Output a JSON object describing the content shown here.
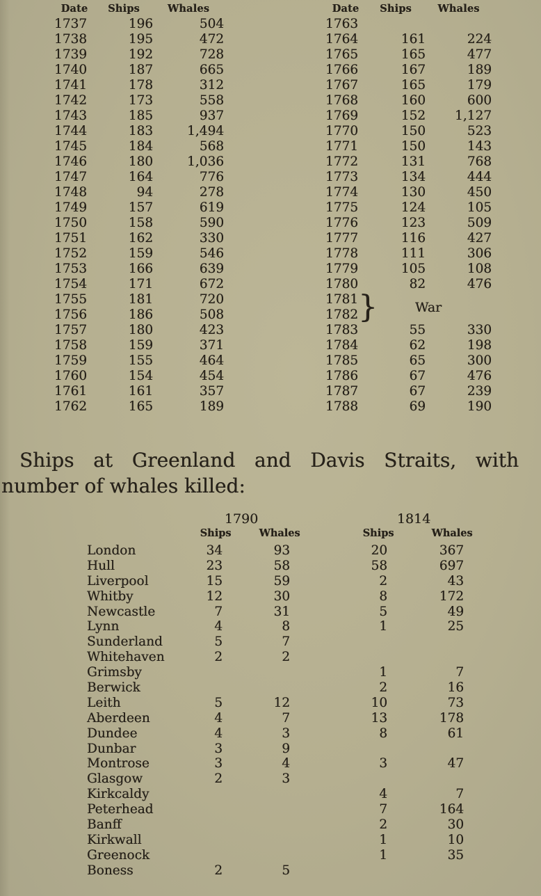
{
  "colors": {
    "page_bg": "#b5af90",
    "ink": "#27221a"
  },
  "annual_table": {
    "headers": {
      "date": "Date",
      "ships": "Ships",
      "whales": "Whales"
    },
    "left_rows": [
      [
        "1737",
        "196",
        "504"
      ],
      [
        "1738",
        "195",
        "472"
      ],
      [
        "1739",
        "192",
        "728"
      ],
      [
        "1740",
        "187",
        "665"
      ],
      [
        "1741",
        "178",
        "312"
      ],
      [
        "1742",
        "173",
        "558"
      ],
      [
        "1743",
        "185",
        "937"
      ],
      [
        "1744",
        "183",
        "1,494"
      ],
      [
        "1745",
        "184",
        "568"
      ],
      [
        "1746",
        "180",
        "1,036"
      ],
      [
        "1747",
        "164",
        "776"
      ],
      [
        "1748",
        "94",
        "278"
      ],
      [
        "1749",
        "157",
        "619"
      ],
      [
        "1750",
        "158",
        "590"
      ],
      [
        "1751",
        "162",
        "330"
      ],
      [
        "1752",
        "159",
        "546"
      ],
      [
        "1753",
        "166",
        "639"
      ],
      [
        "1754",
        "171",
        "672"
      ],
      [
        "1755",
        "181",
        "720"
      ],
      [
        "1756",
        "186",
        "508"
      ],
      [
        "1757",
        "180",
        "423"
      ],
      [
        "1758",
        "159",
        "371"
      ],
      [
        "1759",
        "155",
        "464"
      ],
      [
        "1760",
        "154",
        "454"
      ],
      [
        "1761",
        "161",
        "357"
      ],
      [
        "1762",
        "165",
        "189"
      ]
    ],
    "right_rows_before_war": [
      [
        "1763",
        "",
        ""
      ],
      [
        "1764",
        "161",
        "224"
      ],
      [
        "1765",
        "165",
        "477"
      ],
      [
        "1766",
        "167",
        "189"
      ],
      [
        "1767",
        "165",
        "179"
      ],
      [
        "1768",
        "160",
        "600"
      ],
      [
        "1769",
        "152",
        "1,127"
      ],
      [
        "1770",
        "150",
        "523"
      ],
      [
        "1771",
        "150",
        "143"
      ],
      [
        "1772",
        "131",
        "768"
      ],
      [
        "1773",
        "134",
        "444"
      ],
      [
        "1774",
        "130",
        "450"
      ],
      [
        "1775",
        "124",
        "105"
      ],
      [
        "1776",
        "123",
        "509"
      ],
      [
        "1777",
        "116",
        "427"
      ],
      [
        "1778",
        "111",
        "306"
      ],
      [
        "1779",
        "105",
        "108"
      ],
      [
        "1780",
        "82",
        "476"
      ]
    ],
    "war": {
      "year1": "1781",
      "year2": "1782",
      "brace": "}",
      "label": "War"
    },
    "right_rows_after_war": [
      [
        "1783",
        "55",
        "330"
      ],
      [
        "1784",
        "62",
        "198"
      ],
      [
        "1785",
        "65",
        "300"
      ],
      [
        "1786",
        "67",
        "476"
      ],
      [
        "1787",
        "67",
        "239"
      ],
      [
        "1788",
        "69",
        "190"
      ]
    ]
  },
  "paragraph": {
    "line1": "Ships at Greenland and Davis Straits, with",
    "line2": "number of whales killed:"
  },
  "ports_table": {
    "year_1790": "1790",
    "year_1814": "1814",
    "subheaders": {
      "ships": "Ships",
      "whales": "Whales"
    },
    "rows": [
      [
        "London",
        "34",
        "93",
        "20",
        "367"
      ],
      [
        "Hull",
        "23",
        "58",
        "58",
        "697"
      ],
      [
        "Liverpool",
        "15",
        "59",
        "2",
        "43"
      ],
      [
        "Whitby",
        "12",
        "30",
        "8",
        "172"
      ],
      [
        "Newcastle",
        "7",
        "31",
        "5",
        "49"
      ],
      [
        "Lynn",
        "4",
        "8",
        "1",
        "25"
      ],
      [
        "Sunderland",
        "5",
        "7",
        "",
        ""
      ],
      [
        "Whitehaven",
        "2",
        "2",
        "",
        ""
      ],
      [
        "Grimsby",
        "",
        "",
        "1",
        "7"
      ],
      [
        "Berwick",
        "",
        "",
        "2",
        "16"
      ],
      [
        "Leith",
        "5",
        "12",
        "10",
        "73"
      ],
      [
        "Aberdeen",
        "4",
        "7",
        "13",
        "178"
      ],
      [
        "Dundee",
        "4",
        "3",
        "8",
        "61"
      ],
      [
        "Dunbar",
        "3",
        "9",
        "",
        ""
      ],
      [
        "Montrose",
        "3",
        "4",
        "3",
        "47"
      ],
      [
        "Glasgow",
        "2",
        "3",
        "",
        ""
      ],
      [
        "Kirkcaldy",
        "",
        "",
        "4",
        "7"
      ],
      [
        "Peterhead",
        "",
        "",
        "7",
        "164"
      ],
      [
        "Banff",
        "",
        "",
        "2",
        "30"
      ],
      [
        "Kirkwall",
        "",
        "",
        "1",
        "10"
      ],
      [
        "Greenock",
        "",
        "",
        "1",
        "35"
      ],
      [
        "Boness",
        "2",
        "5",
        "",
        ""
      ]
    ]
  }
}
